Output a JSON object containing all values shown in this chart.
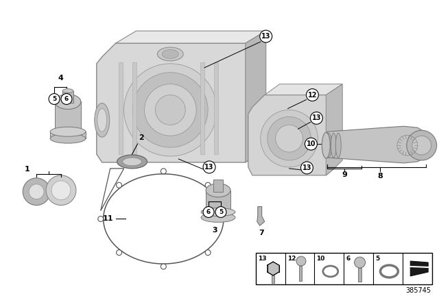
{
  "background_color": "#ffffff",
  "part_number": "385745",
  "fig_w": 6.4,
  "fig_h": 4.48,
  "dpi": 100,
  "housing_color": "#d0d0d0",
  "housing_edge": "#888888",
  "component_color": "#c0c0c0",
  "component_edge": "#777777",
  "dark_gray": "#a0a0a0",
  "label_fontsize": 8,
  "callout_fontsize": 7
}
